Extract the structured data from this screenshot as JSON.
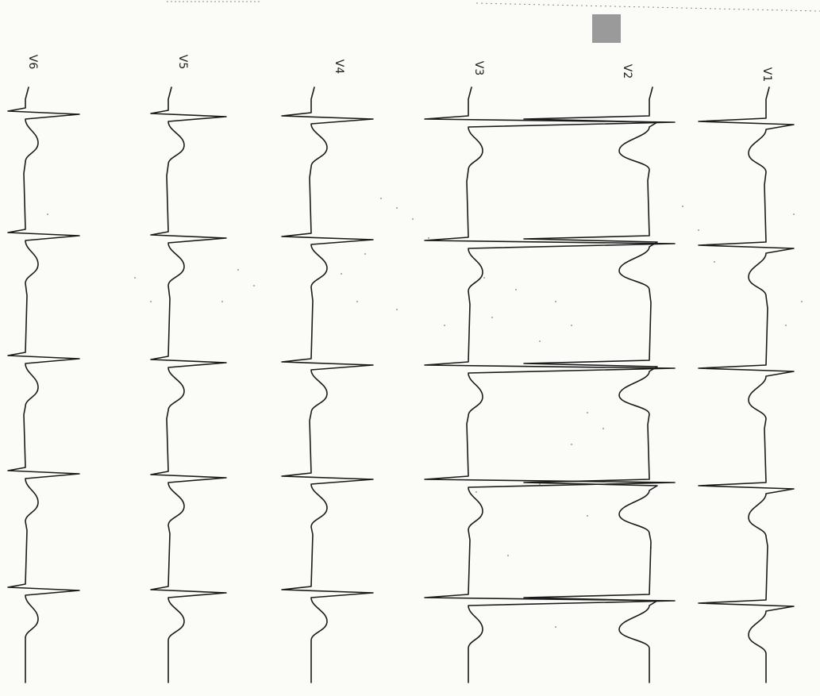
{
  "leads": [
    {
      "id": "V1",
      "label": "V1"
    },
    {
      "id": "V2",
      "label": "V2"
    },
    {
      "id": "V3",
      "label": "V3"
    },
    {
      "id": "V4",
      "label": "V4"
    },
    {
      "id": "V5",
      "label": "V5"
    },
    {
      "id": "V6",
      "label": "V6"
    }
  ],
  "colors": {
    "paper": "#fbfbf8",
    "trace": "#1a1a1a",
    "dots": "#8a8a8a",
    "marker": "#9a9a9a"
  }
}
